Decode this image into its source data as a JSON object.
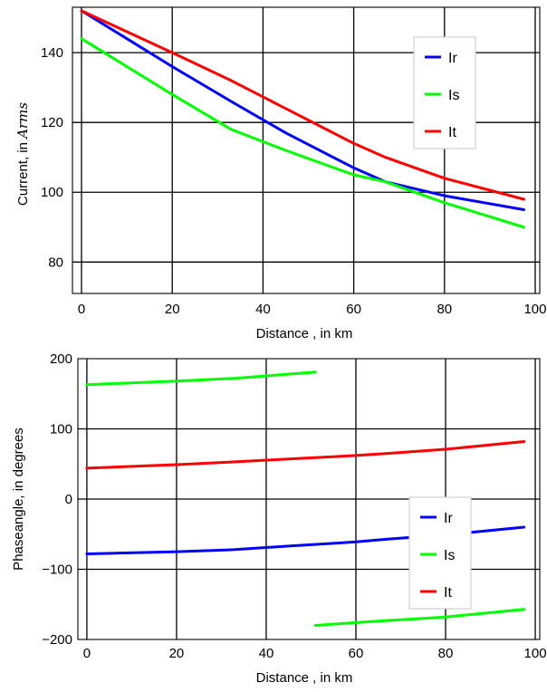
{
  "chart_data": [
    {
      "type": "line",
      "xlabel": "Distance , in km",
      "ylabel_prefix": "Current, in ",
      "ylabel_math": "Arms",
      "xlim": [
        -2,
        101
      ],
      "ylim": [
        71,
        153
      ],
      "xticks": [
        0,
        20,
        40,
        60,
        80,
        100
      ],
      "yticks": [
        80,
        100,
        120,
        140
      ],
      "grid": true,
      "legend_position": "top-right",
      "series": [
        {
          "name": "Ir",
          "color": "#0000ff",
          "x": [
            0,
            10,
            20,
            33,
            45,
            60,
            67,
            80,
            97.5
          ],
          "y": [
            152,
            144,
            136,
            126,
            117,
            107,
            103,
            99,
            95
          ]
        },
        {
          "name": "Is",
          "color": "#00ff00",
          "x": [
            0,
            10,
            20,
            33,
            45,
            60,
            67,
            80,
            97.5
          ],
          "y": [
            144,
            136,
            128,
            118,
            112,
            105,
            103,
            97,
            90
          ]
        },
        {
          "name": "It",
          "color": "#ff0000",
          "x": [
            0,
            10,
            20,
            33,
            45,
            60,
            67,
            80,
            97.5
          ],
          "y": [
            152,
            146,
            140,
            132,
            124,
            114,
            110,
            104,
            98
          ]
        }
      ]
    },
    {
      "type": "line",
      "xlabel": "Distance , in km",
      "ylabel": "Phaseangle, in degrees",
      "xlim": [
        -2,
        101
      ],
      "ylim": [
        -200,
        200
      ],
      "xticks": [
        0,
        20,
        40,
        60,
        80,
        100
      ],
      "yticks": [
        -200,
        -100,
        0,
        100,
        200
      ],
      "grid": true,
      "legend_position": "lower-right",
      "series": [
        {
          "name": "Ir",
          "color": "#0000ff",
          "x": [
            0,
            20,
            33,
            45,
            60,
            67,
            80,
            97.5
          ],
          "y": [
            -78,
            -75,
            -72,
            -67,
            -61,
            -57,
            -51,
            -40
          ]
        },
        {
          "name": "Is",
          "color": "#00ff00",
          "segments": [
            {
              "x": [
                0,
                20,
                33,
                51
              ],
              "y": [
                163,
                168,
                172,
                181
              ]
            },
            {
              "x": [
                51,
                60,
                67,
                80,
                97.5
              ],
              "y": [
                -180,
                -176,
                -173,
                -168,
                -157
              ]
            }
          ]
        },
        {
          "name": "It",
          "color": "#ff0000",
          "x": [
            0,
            20,
            33,
            45,
            60,
            67,
            80,
            97.5
          ],
          "y": [
            44,
            49,
            53,
            57,
            62,
            65,
            71,
            82
          ]
        }
      ]
    }
  ]
}
